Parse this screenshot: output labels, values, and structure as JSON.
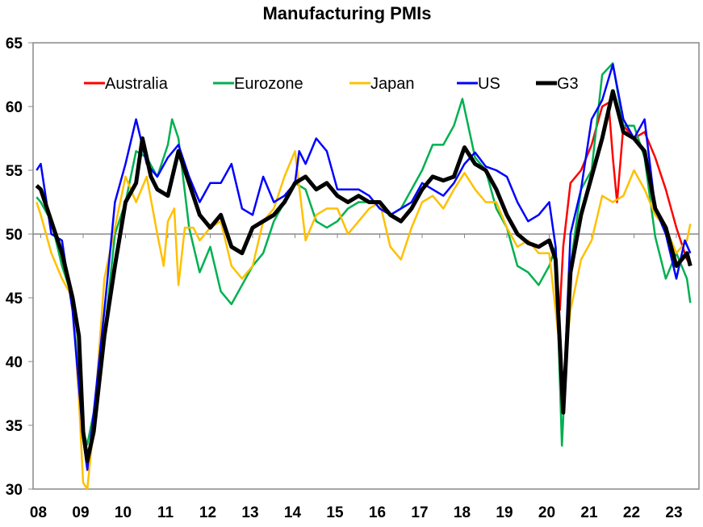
{
  "chart_data": {
    "type": "line",
    "title": "Manufacturing PMIs",
    "xlabel": "",
    "ylabel": "",
    "ylim": [
      30,
      65
    ],
    "xlim": [
      2007.8,
      2023.6
    ],
    "yticks": [
      30,
      35,
      40,
      45,
      50,
      55,
      60,
      65
    ],
    "xtick_labels": [
      {
        "year": 2008,
        "label": "08"
      },
      {
        "year": 2009,
        "label": "09"
      },
      {
        "year": 2010,
        "label": "10"
      },
      {
        "year": 2011,
        "label": "11"
      },
      {
        "year": 2012,
        "label": "12"
      },
      {
        "year": 2013,
        "label": "13"
      },
      {
        "year": 2014,
        "label": "14"
      },
      {
        "year": 2015,
        "label": "15"
      },
      {
        "year": 2016,
        "label": "16"
      },
      {
        "year": 2017,
        "label": "17"
      },
      {
        "year": 2018,
        "label": "18"
      },
      {
        "year": 2019,
        "label": "19"
      },
      {
        "year": 2020,
        "label": "20"
      },
      {
        "year": 2021,
        "label": "21"
      },
      {
        "year": 2022,
        "label": "22"
      },
      {
        "year": 2023,
        "label": "23"
      }
    ],
    "reference_line": 50,
    "grid": false,
    "legend_position": "top",
    "series": [
      {
        "name": "Australia",
        "color": "#ff0000",
        "x": [
          2020.25,
          2020.33,
          2020.5,
          2020.75,
          2021.0,
          2021.25,
          2021.4,
          2021.5,
          2021.6,
          2021.75,
          2022.0,
          2022.25,
          2022.5,
          2022.75,
          2023.0,
          2023.25,
          2023.33
        ],
        "y": [
          44,
          49,
          54,
          55,
          57,
          60,
          60.3,
          56,
          52.5,
          58.5,
          57.5,
          58,
          56,
          53.5,
          50.5,
          48,
          48
        ]
      },
      {
        "name": "Eurozone",
        "color": "#00b050",
        "x": [
          2007.9,
          2008.0,
          2008.25,
          2008.5,
          2008.75,
          2008.9,
          2009.0,
          2009.1,
          2009.25,
          2009.5,
          2009.75,
          2010.0,
          2010.25,
          2010.5,
          2010.75,
          2011.0,
          2011.1,
          2011.25,
          2011.5,
          2011.75,
          2012.0,
          2012.25,
          2012.5,
          2012.75,
          2013.0,
          2013.25,
          2013.5,
          2013.75,
          2014.0,
          2014.25,
          2014.5,
          2014.75,
          2015.0,
          2015.25,
          2015.5,
          2015.75,
          2016.0,
          2016.25,
          2016.5,
          2016.75,
          2017.0,
          2017.25,
          2017.5,
          2017.75,
          2017.95,
          2018.25,
          2018.5,
          2018.75,
          2019.0,
          2019.25,
          2019.5,
          2019.75,
          2020.0,
          2020.15,
          2020.3,
          2020.5,
          2020.75,
          2021.0,
          2021.1,
          2021.25,
          2021.5,
          2021.75,
          2022.0,
          2022.25,
          2022.5,
          2022.75,
          2023.0,
          2023.25,
          2023.33
        ],
        "y": [
          52.9,
          52.5,
          51,
          47.5,
          45,
          38,
          34.5,
          33.5,
          36,
          42,
          50,
          52.5,
          56.5,
          56,
          54.5,
          57,
          59,
          57.5,
          50.5,
          47,
          49,
          45.5,
          44.5,
          46,
          47.5,
          48.5,
          51,
          52.5,
          54,
          53.5,
          51,
          50.5,
          51,
          52,
          52.5,
          52.5,
          52.5,
          51.5,
          52,
          53.5,
          55,
          57,
          57,
          58.5,
          60.6,
          56,
          55,
          52,
          50.5,
          47.5,
          47,
          46,
          47.5,
          49,
          33.4,
          47.5,
          53.5,
          55,
          58,
          62.5,
          63.4,
          58.5,
          58.5,
          56,
          49.8,
          46.5,
          48.5,
          46.5,
          44.6
        ]
      },
      {
        "name": "Japan",
        "color": "#ffc000",
        "x": [
          2007.9,
          2008.0,
          2008.25,
          2008.5,
          2008.75,
          2008.9,
          2009.0,
          2009.1,
          2009.25,
          2009.5,
          2009.75,
          2010.0,
          2010.25,
          2010.5,
          2010.75,
          2010.9,
          2011.0,
          2011.15,
          2011.25,
          2011.4,
          2011.6,
          2011.75,
          2012.0,
          2012.25,
          2012.5,
          2012.75,
          2013.0,
          2013.25,
          2013.5,
          2013.75,
          2014.0,
          2014.25,
          2014.5,
          2014.75,
          2015.0,
          2015.25,
          2015.5,
          2015.75,
          2016.0,
          2016.25,
          2016.5,
          2016.75,
          2017.0,
          2017.25,
          2017.5,
          2017.75,
          2018.0,
          2018.25,
          2018.5,
          2018.75,
          2019.0,
          2019.25,
          2019.5,
          2019.75,
          2020.0,
          2020.15,
          2020.33,
          2020.5,
          2020.75,
          2021.0,
          2021.25,
          2021.5,
          2021.75,
          2022.0,
          2022.25,
          2022.5,
          2022.75,
          2023.0,
          2023.25,
          2023.33
        ],
        "y": [
          52.5,
          51.5,
          48.5,
          46.5,
          45,
          37,
          30.5,
          30,
          35,
          46.5,
          50.5,
          54.5,
          52.5,
          54.5,
          50,
          47.5,
          51,
          52,
          46,
          50.5,
          50.5,
          49.5,
          50.5,
          51,
          47.5,
          46.5,
          47.5,
          51,
          52,
          54.5,
          56.5,
          49.5,
          51.5,
          52,
          52,
          50,
          51,
          52,
          52.5,
          49,
          48,
          50.5,
          52.5,
          53,
          52,
          53.5,
          54.8,
          53.5,
          52.5,
          52.5,
          50.5,
          49,
          49.5,
          48.5,
          48.5,
          44,
          38.5,
          44,
          48,
          49.5,
          53,
          52.5,
          53,
          55,
          53.5,
          51.5,
          50.5,
          48.5,
          49.5,
          50.8
        ]
      },
      {
        "name": "US",
        "color": "#0000ff",
        "x": [
          2007.9,
          2008.0,
          2008.25,
          2008.5,
          2008.75,
          2008.9,
          2009.0,
          2009.1,
          2009.25,
          2009.5,
          2009.75,
          2010.0,
          2010.25,
          2010.5,
          2010.75,
          2011.0,
          2011.25,
          2011.5,
          2011.75,
          2012.0,
          2012.25,
          2012.5,
          2012.75,
          2013.0,
          2013.25,
          2013.5,
          2013.75,
          2014.0,
          2014.1,
          2014.25,
          2014.5,
          2014.75,
          2015.0,
          2015.25,
          2015.5,
          2015.75,
          2016.0,
          2016.25,
          2016.5,
          2016.75,
          2017.0,
          2017.25,
          2017.5,
          2017.75,
          2018.0,
          2018.25,
          2018.5,
          2018.75,
          2019.0,
          2019.25,
          2019.5,
          2019.75,
          2020.0,
          2020.15,
          2020.33,
          2020.5,
          2020.75,
          2021.0,
          2021.25,
          2021.5,
          2021.75,
          2022.0,
          2022.25,
          2022.5,
          2022.75,
          2023.0,
          2023.2,
          2023.33
        ],
        "y": [
          55,
          55.5,
          50,
          49.5,
          44,
          38,
          34,
          31.5,
          36,
          44,
          52.5,
          55.5,
          59,
          55.5,
          54.5,
          56,
          57,
          54.5,
          52.5,
          54,
          54,
          55.5,
          52,
          51.5,
          54.5,
          52.5,
          53,
          54,
          56.5,
          55.5,
          57.5,
          56.5,
          53.5,
          53.5,
          53.5,
          53,
          52,
          51.5,
          52,
          52.5,
          54,
          53.5,
          53,
          54,
          55.5,
          56.4,
          55.3,
          55,
          54.5,
          52.5,
          51,
          51.5,
          52.5,
          49,
          36.5,
          50,
          53.5,
          59,
          60.5,
          63.3,
          59,
          57.5,
          59,
          52,
          50,
          46.5,
          49.5,
          48.5
        ]
      },
      {
        "name": "G3",
        "color": "#000000",
        "x": [
          2007.9,
          2008.0,
          2008.25,
          2008.5,
          2008.75,
          2008.9,
          2009.0,
          2009.1,
          2009.25,
          2009.5,
          2009.75,
          2010.0,
          2010.25,
          2010.4,
          2010.6,
          2010.75,
          2011.0,
          2011.25,
          2011.5,
          2011.75,
          2012.0,
          2012.25,
          2012.5,
          2012.75,
          2013.0,
          2013.25,
          2013.5,
          2013.75,
          2014.0,
          2014.25,
          2014.5,
          2014.75,
          2015.0,
          2015.25,
          2015.5,
          2015.75,
          2016.0,
          2016.25,
          2016.5,
          2016.75,
          2017.0,
          2017.25,
          2017.5,
          2017.75,
          2018.0,
          2018.25,
          2018.5,
          2018.75,
          2019.0,
          2019.25,
          2019.5,
          2019.75,
          2020.0,
          2020.15,
          2020.33,
          2020.5,
          2020.75,
          2021.0,
          2021.25,
          2021.5,
          2021.75,
          2022.0,
          2022.25,
          2022.5,
          2022.75,
          2023.0,
          2023.25,
          2023.33
        ],
        "y": [
          53.8,
          53.5,
          51,
          48.5,
          45,
          42,
          34.5,
          32.2,
          34.5,
          42,
          47.5,
          52.5,
          54,
          57.5,
          54.5,
          53.5,
          53,
          56.5,
          54,
          51.5,
          50.5,
          51.5,
          49,
          48.5,
          50.5,
          51,
          51.5,
          52.5,
          54,
          54.5,
          53.5,
          54,
          53,
          52.5,
          53,
          52.5,
          52.5,
          51.5,
          51,
          52,
          53.5,
          54.5,
          54.2,
          54.5,
          56.8,
          55.5,
          55,
          53.5,
          51.5,
          50,
          49.3,
          49,
          49.5,
          48,
          36,
          47,
          51.5,
          54.5,
          57.5,
          61.2,
          58,
          57.5,
          56.5,
          52,
          50.5,
          47.5,
          48.5,
          47.5
        ]
      }
    ]
  }
}
